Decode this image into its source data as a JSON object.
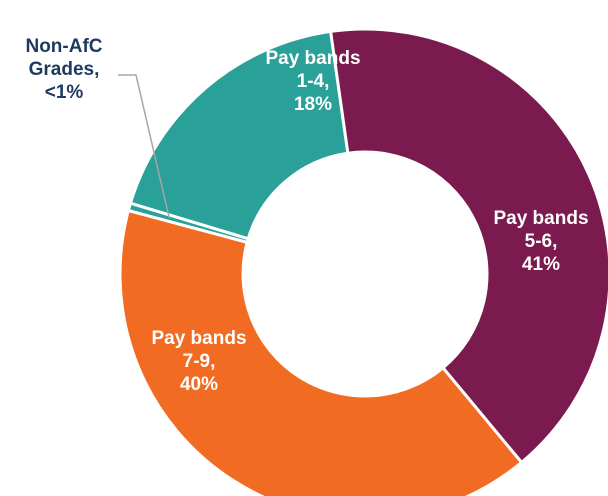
{
  "chart_data": {
    "type": "pie",
    "donut": true,
    "slices": [
      {
        "label_lines": [
          "Non-AfC",
          "Grades,",
          "<1%"
        ],
        "value": 0.5,
        "color": "#2aa198",
        "label_position": "outside"
      },
      {
        "label_lines": [
          "Pay bands",
          "1-4,",
          "18%"
        ],
        "value": 18,
        "color": "#2aa198",
        "label_position": "inside"
      },
      {
        "label_lines": [
          "Pay bands",
          "5-6,",
          "41%"
        ],
        "value": 41,
        "color": "#7b1a4e",
        "label_position": "inside"
      },
      {
        "label_lines": [
          "Pay bands",
          "7-9,",
          "40%"
        ],
        "value": 40,
        "color": "#f26b22",
        "label_position": "inside"
      }
    ]
  }
}
